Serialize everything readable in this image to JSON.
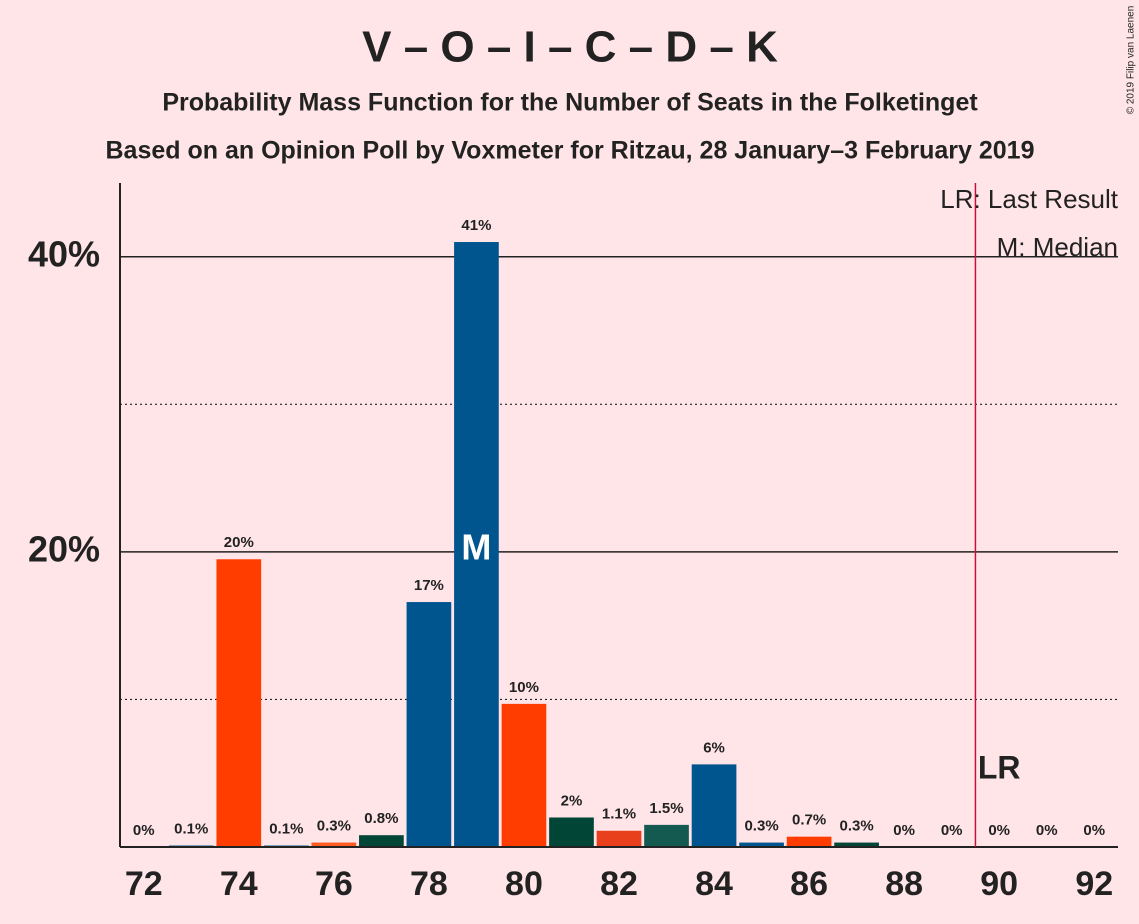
{
  "chart_data": {
    "type": "bar",
    "title": "V – O – I – C – D – K",
    "subtitle": "Probability Mass Function for the Number of Seats in the Folketinget",
    "subtitle2": "Based on an Opinion Poll by Voxmeter for Ritzau, 28 January–3 February 2019",
    "copyright": "© 2019 Filip van Laenen",
    "x": [
      72,
      73,
      74,
      75,
      76,
      77,
      78,
      79,
      80,
      81,
      82,
      83,
      84,
      85,
      86,
      87,
      88,
      89,
      90,
      91,
      92
    ],
    "values": [
      0,
      0.1,
      19.5,
      0.1,
      0.3,
      0.8,
      16.6,
      41,
      9.7,
      2,
      1.1,
      1.5,
      5.6,
      0.3,
      0.7,
      0.3,
      0,
      0,
      0,
      0,
      0
    ],
    "value_labels": [
      "0%",
      "0.1%",
      "20%",
      "0.1%",
      "0.3%",
      "0.8%",
      "17%",
      "41%",
      "10%",
      "2%",
      "1.1%",
      "1.5%",
      "6%",
      "0.3%",
      "0.7%",
      "0.3%",
      "0%",
      "0%",
      "0%",
      "0%",
      "0%"
    ],
    "colors": [
      "#00558f",
      "#00558f",
      "#ff3d00",
      "#00558f",
      "#ff5a1f",
      "#004535",
      "#00558f",
      "#00558f",
      "#ff3d00",
      "#004535",
      "#e8401c",
      "#145a50",
      "#00558f",
      "#00558f",
      "#ff3d00",
      "#004535",
      "#00558f",
      "#00558f",
      "#00558f",
      "#00558f",
      "#00558f"
    ],
    "xlim": [
      71.5,
      92.5
    ],
    "xticks": [
      72,
      74,
      76,
      78,
      80,
      82,
      84,
      86,
      88,
      90,
      92
    ],
    "ylim": [
      0,
      45
    ],
    "yticks": [
      {
        "value": 20,
        "label": "20%"
      },
      {
        "value": 40,
        "label": "40%"
      }
    ],
    "minor_yticks": [
      10,
      30
    ],
    "median": 79,
    "median_label": "M",
    "last_result": 90,
    "last_result_label": "LR",
    "legend": [
      "LR: Last Result",
      "M: Median"
    ]
  }
}
